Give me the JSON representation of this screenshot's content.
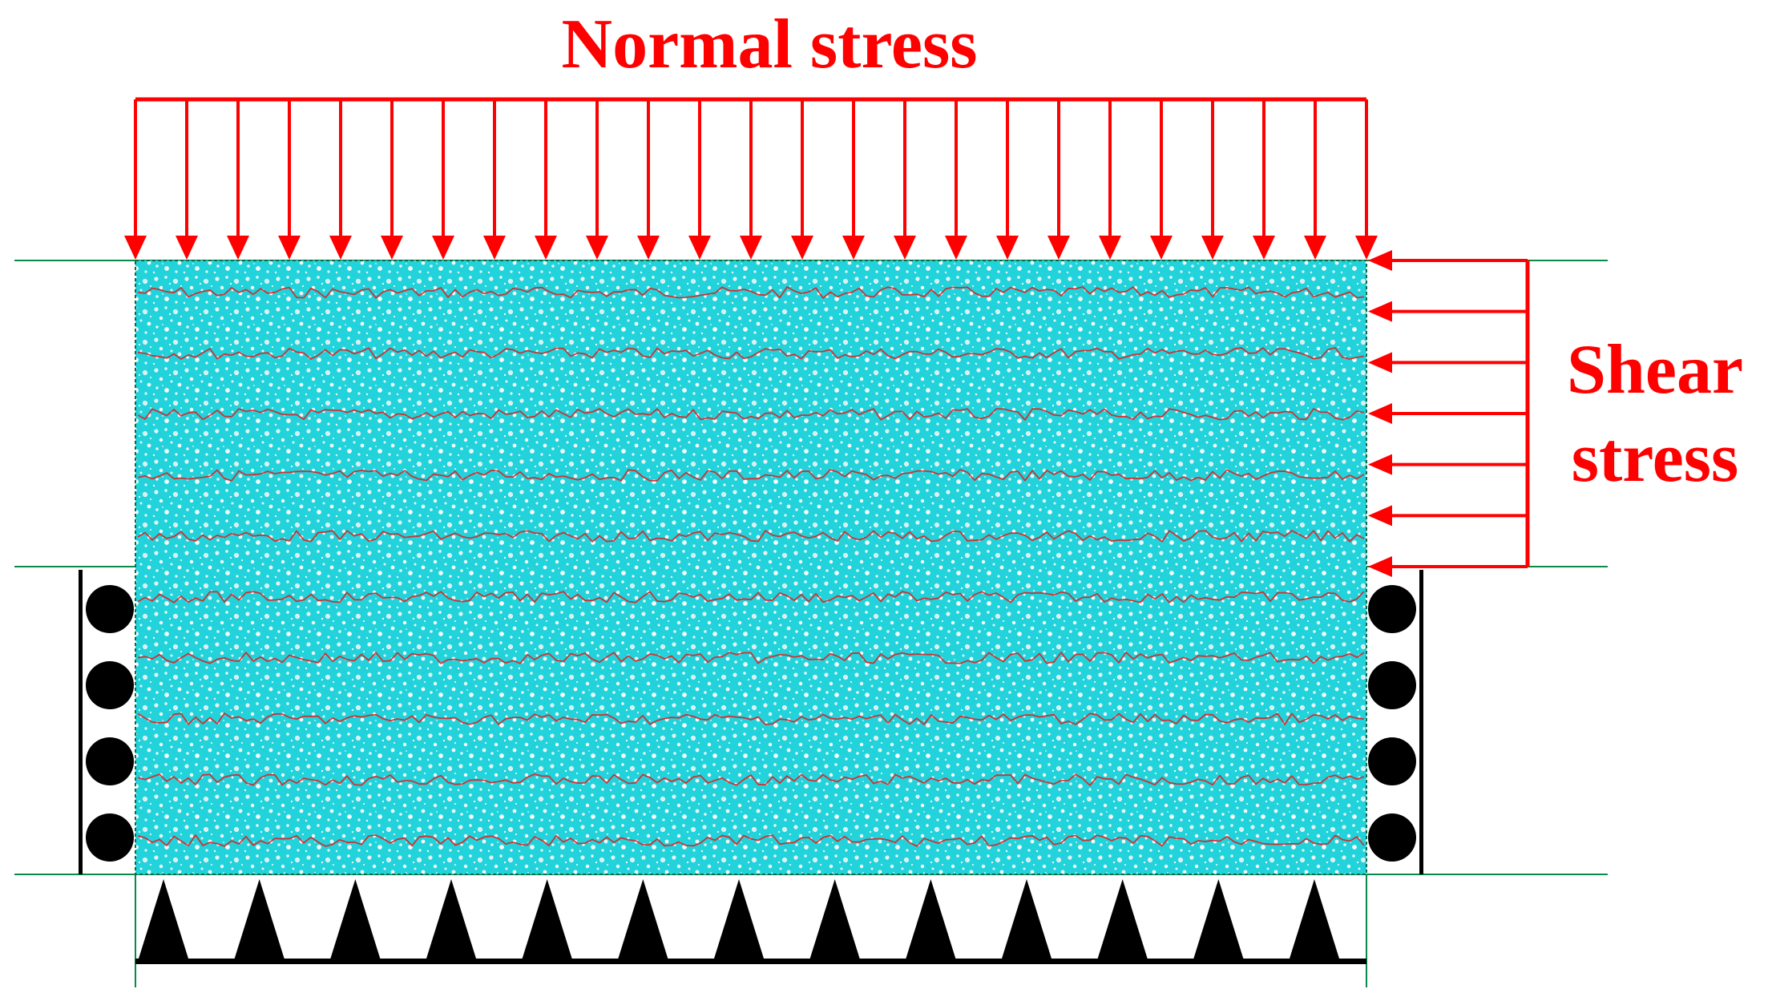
{
  "labels": {
    "normal_stress": "Normal stress",
    "shear_stress_line1": "Shear",
    "shear_stress_line2": "stress"
  },
  "diagram": {
    "normal_arrow_count": 25,
    "shear_arrow_count": 7,
    "left_roller_count": 4,
    "right_roller_count": 4,
    "bottom_triangle_count": 13,
    "crack_band_count": 10
  },
  "colors": {
    "load_red": "#ff0000",
    "specimen_cyan": "#22d3dc",
    "crack_red": "#e02020",
    "boundary_green": "#0a8a4a",
    "support_black": "#000000"
  }
}
